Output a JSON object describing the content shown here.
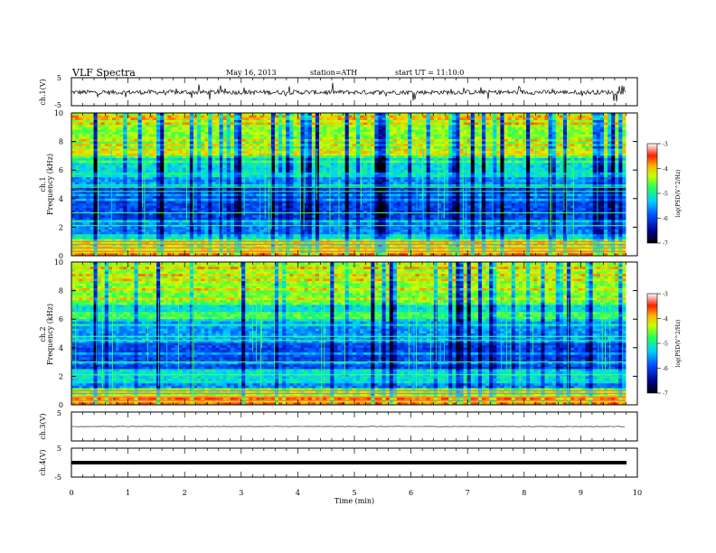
{
  "header": {
    "title": "VLF  Spectra",
    "date": "May 16, 2013",
    "station": "station=ATH",
    "start": "start  UT  =   11:10:0"
  },
  "chart_data": [
    {
      "type": "line",
      "panel": "ch1-waveform",
      "ylabel": "ch.1(V)",
      "ylim": [
        -5,
        5
      ],
      "yticks": [
        "5",
        "-5"
      ],
      "xlim": [
        0,
        10
      ],
      "data_end_min": 9.8,
      "baseline_v": -0.2
    },
    {
      "type": "heatmap",
      "panel": "ch1-spectrogram",
      "ylabel": "Frequency (kHz)",
      "channel_label": "ch.1",
      "ylim": [
        0,
        10
      ],
      "yticks": [
        "0",
        "2",
        "4",
        "6",
        "8",
        "10"
      ],
      "colorbar": {
        "label": "log(PSD(V^2/Hz)",
        "ticks": [
          "-3",
          "-4",
          "-5",
          "-6",
          "-7"
        ],
        "range": [
          -7,
          -3
        ]
      }
    },
    {
      "type": "heatmap",
      "panel": "ch2-spectrogram",
      "ylabel": "Frequency (kHz)",
      "channel_label": "ch.2",
      "ylim": [
        0,
        10
      ],
      "yticks": [
        "0",
        "2",
        "4",
        "6",
        "8",
        "10"
      ],
      "colorbar": {
        "label": "log(PSD(V^2/Hz)",
        "ticks": [
          "-3",
          "-4",
          "-5",
          "-6",
          "-7"
        ],
        "range": [
          -7,
          -3
        ]
      }
    },
    {
      "type": "line",
      "panel": "ch3-waveform",
      "ylabel": "ch.3(V)",
      "ylim": [
        -5,
        5
      ],
      "yticks": [
        "5"
      ],
      "baseline_v": 0
    },
    {
      "type": "line",
      "panel": "ch4-waveform",
      "ylabel": "ch.4(V)",
      "ylim": [
        -5,
        5
      ],
      "yticks": [
        "5",
        "-5"
      ],
      "baseline_v": 0
    }
  ],
  "xaxis": {
    "label": "Time (min)",
    "ticks": [
      "0",
      "1",
      "2",
      "3",
      "4",
      "5",
      "6",
      "7",
      "8",
      "9",
      "10"
    ]
  }
}
